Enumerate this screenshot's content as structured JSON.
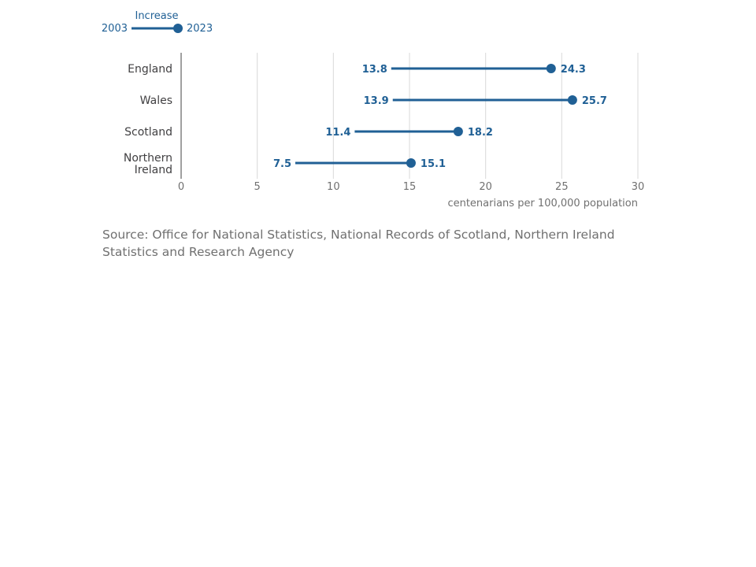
{
  "chart_data": {
    "type": "dumbbell",
    "categories": [
      "England",
      "Wales",
      "Scotland",
      "Northern Ireland"
    ],
    "category_lines": [
      [
        "England"
      ],
      [
        "Wales"
      ],
      [
        "Scotland"
      ],
      [
        "Northern",
        "Ireland"
      ]
    ],
    "series": [
      {
        "name": "2003",
        "values": [
          13.8,
          13.9,
          11.4,
          7.5
        ]
      },
      {
        "name": "2023",
        "values": [
          24.3,
          25.7,
          18.2,
          15.1
        ]
      }
    ],
    "legend": {
      "title": "Increase",
      "start": "2003",
      "end": "2023",
      "placement": "top-left"
    },
    "xlabel": "centenarians per 100,000 population",
    "xlim": [
      0,
      30
    ],
    "xticks": [
      0,
      5,
      10,
      15,
      20,
      25,
      30
    ],
    "grid": true,
    "colors": {
      "series": "#206095",
      "grid": "#d9d9d9",
      "axis": "#a0a0a0"
    }
  },
  "source": "Source: Office for National Statistics, National Records of Scotland, Northern Ireland Statistics and Research Agency"
}
